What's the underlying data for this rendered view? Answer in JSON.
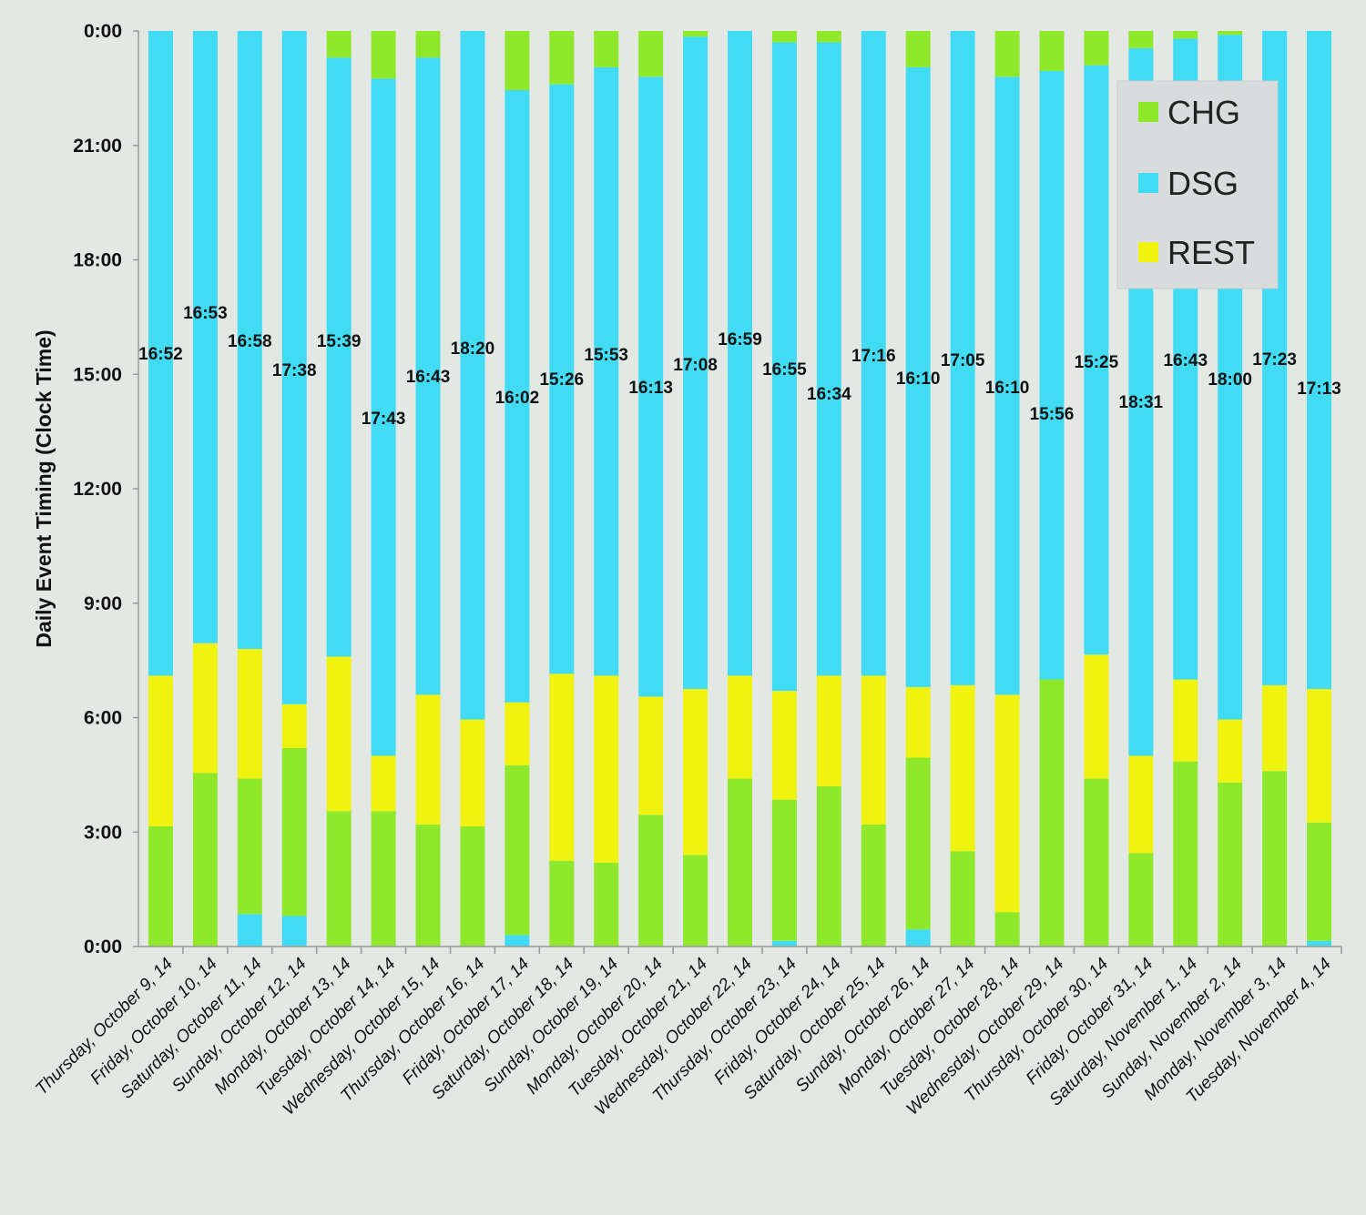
{
  "chart_data": {
    "type": "bar",
    "stacked": true,
    "title": "",
    "ylabel": "Daily Event Timing (Clock Time)",
    "xlabel": "",
    "ylim_hours": [
      0,
      24
    ],
    "y_axis_inverted": true,
    "y_ticks_hours": [
      0,
      3,
      6,
      9,
      12,
      15,
      18,
      21,
      24
    ],
    "y_tick_labels": [
      "0:00",
      "3:00",
      "6:00",
      "9:00",
      "12:00",
      "15:00",
      "18:00",
      "21:00",
      "0:00"
    ],
    "legend_position": "top-right",
    "legend": [
      {
        "name": "CHG",
        "color": "#8fe82a"
      },
      {
        "name": "DSG",
        "color": "#41dcf3"
      },
      {
        "name": "REST",
        "color": "#f0f20f"
      }
    ],
    "categories": [
      "Thursday, October 9, 14",
      "Friday, October 10, 14",
      "Saturday, October 11, 14",
      "Sunday, October 12, 14",
      "Monday, October 13, 14",
      "Tuesday, October 14, 14",
      "Wednesday, October 15, 14",
      "Thursday, October 16, 14",
      "Friday, October 17, 14",
      "Saturday, October 18, 14",
      "Sunday, October 19, 14",
      "Monday, October 20, 14",
      "Tuesday, October 21, 14",
      "Wednesday, October 22, 14",
      "Thursday, October 23, 14",
      "Friday, October 24, 14",
      "Saturday, October 25, 14",
      "Sunday, October 26, 14",
      "Monday, October 27, 14",
      "Tuesday, October 28, 14",
      "Wednesday, October 29, 14",
      "Thursday, October 30, 14",
      "Friday, October 31, 14",
      "Saturday, November 1, 14",
      "Sunday, November 2, 14",
      "Monday, November 3, 14",
      "Tuesday, November 4, 14"
    ],
    "segments_note": "Each bar lists stacked segments as [start_hour, end_hour, series] measured from 0:00 (bottom) to 24:00 (top).",
    "bars": [
      {
        "label": "16:52",
        "segments": [
          [
            0,
            3.15,
            "CHG"
          ],
          [
            3.15,
            7.1,
            "REST"
          ],
          [
            7.1,
            24,
            "DSG"
          ]
        ]
      },
      {
        "label": "16:53",
        "segments": [
          [
            0,
            4.55,
            "CHG"
          ],
          [
            4.55,
            7.95,
            "REST"
          ],
          [
            7.95,
            24,
            "DSG"
          ]
        ]
      },
      {
        "label": "16:58",
        "segments": [
          [
            0,
            0.85,
            "DSG"
          ],
          [
            0.85,
            4.4,
            "CHG"
          ],
          [
            4.4,
            7.8,
            "REST"
          ],
          [
            7.8,
            24,
            "DSG"
          ]
        ]
      },
      {
        "label": "17:38",
        "segments": [
          [
            0,
            0.8,
            "DSG"
          ],
          [
            0.8,
            5.2,
            "CHG"
          ],
          [
            5.2,
            6.35,
            "REST"
          ],
          [
            6.35,
            24,
            "DSG"
          ]
        ]
      },
      {
        "label": "15:39",
        "segments": [
          [
            0,
            3.55,
            "CHG"
          ],
          [
            3.55,
            7.6,
            "REST"
          ],
          [
            7.6,
            23.3,
            "DSG"
          ],
          [
            23.3,
            24,
            "CHG"
          ]
        ]
      },
      {
        "label": "17:43",
        "segments": [
          [
            0,
            3.55,
            "CHG"
          ],
          [
            3.55,
            5.0,
            "REST"
          ],
          [
            5.0,
            22.75,
            "DSG"
          ],
          [
            22.75,
            24,
            "CHG"
          ]
        ]
      },
      {
        "label": "16:43",
        "segments": [
          [
            0,
            3.2,
            "CHG"
          ],
          [
            3.2,
            6.6,
            "REST"
          ],
          [
            6.6,
            23.3,
            "DSG"
          ],
          [
            23.3,
            24,
            "CHG"
          ]
        ]
      },
      {
        "label": "18:20",
        "segments": [
          [
            0,
            3.15,
            "CHG"
          ],
          [
            3.15,
            5.95,
            "REST"
          ],
          [
            5.95,
            24,
            "DSG"
          ]
        ]
      },
      {
        "label": "16:02",
        "segments": [
          [
            0,
            0.3,
            "DSG"
          ],
          [
            0.3,
            4.75,
            "CHG"
          ],
          [
            4.75,
            6.4,
            "REST"
          ],
          [
            6.4,
            22.45,
            "DSG"
          ],
          [
            22.45,
            24,
            "CHG"
          ]
        ]
      },
      {
        "label": "15:26",
        "segments": [
          [
            0,
            2.25,
            "CHG"
          ],
          [
            2.25,
            7.15,
            "REST"
          ],
          [
            7.15,
            22.6,
            "DSG"
          ],
          [
            22.6,
            24,
            "CHG"
          ]
        ]
      },
      {
        "label": "15:53",
        "segments": [
          [
            0,
            2.2,
            "CHG"
          ],
          [
            2.2,
            7.1,
            "REST"
          ],
          [
            7.1,
            23.05,
            "DSG"
          ],
          [
            23.05,
            24,
            "CHG"
          ]
        ]
      },
      {
        "label": "16:13",
        "segments": [
          [
            0,
            3.45,
            "CHG"
          ],
          [
            3.45,
            6.55,
            "REST"
          ],
          [
            6.55,
            22.8,
            "DSG"
          ],
          [
            22.8,
            24,
            "CHG"
          ]
        ]
      },
      {
        "label": "17:08",
        "segments": [
          [
            0,
            2.4,
            "CHG"
          ],
          [
            2.4,
            6.75,
            "REST"
          ],
          [
            6.75,
            23.85,
            "DSG"
          ],
          [
            23.85,
            24,
            "CHG"
          ]
        ]
      },
      {
        "label": "16:59",
        "segments": [
          [
            0,
            4.4,
            "CHG"
          ],
          [
            4.4,
            7.1,
            "REST"
          ],
          [
            7.1,
            24,
            "DSG"
          ]
        ]
      },
      {
        "label": "16:55",
        "segments": [
          [
            0,
            0.15,
            "DSG"
          ],
          [
            0.15,
            3.85,
            "CHG"
          ],
          [
            3.85,
            6.7,
            "REST"
          ],
          [
            6.7,
            23.7,
            "DSG"
          ],
          [
            23.7,
            24,
            "CHG"
          ]
        ]
      },
      {
        "label": "16:34",
        "segments": [
          [
            0,
            4.2,
            "CHG"
          ],
          [
            4.2,
            7.1,
            "REST"
          ],
          [
            7.1,
            23.7,
            "DSG"
          ],
          [
            23.7,
            24,
            "CHG"
          ]
        ]
      },
      {
        "label": "17:16",
        "segments": [
          [
            0,
            3.2,
            "CHG"
          ],
          [
            3.2,
            7.1,
            "REST"
          ],
          [
            7.1,
            24,
            "DSG"
          ]
        ]
      },
      {
        "label": "16:10",
        "segments": [
          [
            0,
            0.45,
            "DSG"
          ],
          [
            0.45,
            4.95,
            "CHG"
          ],
          [
            4.95,
            6.8,
            "REST"
          ],
          [
            6.8,
            23.05,
            "DSG"
          ],
          [
            23.05,
            24,
            "CHG"
          ]
        ]
      },
      {
        "label": "17:05",
        "segments": [
          [
            0,
            2.5,
            "CHG"
          ],
          [
            2.5,
            6.85,
            "REST"
          ],
          [
            6.85,
            24,
            "DSG"
          ]
        ]
      },
      {
        "label": "16:10",
        "segments": [
          [
            0,
            0.9,
            "CHG"
          ],
          [
            0.9,
            6.6,
            "REST"
          ],
          [
            6.6,
            22.8,
            "DSG"
          ],
          [
            22.8,
            24,
            "CHG"
          ]
        ]
      },
      {
        "label": "15:56",
        "segments": [
          [
            0,
            7.0,
            "CHG"
          ],
          [
            7.0,
            22.95,
            "DSG"
          ],
          [
            22.95,
            24,
            "CHG"
          ]
        ]
      },
      {
        "label": "15:25",
        "segments": [
          [
            0,
            4.4,
            "CHG"
          ],
          [
            4.4,
            7.65,
            "REST"
          ],
          [
            7.65,
            23.1,
            "DSG"
          ],
          [
            23.1,
            24,
            "CHG"
          ]
        ]
      },
      {
        "label": "18:31",
        "segments": [
          [
            0,
            2.45,
            "CHG"
          ],
          [
            2.45,
            5.0,
            "REST"
          ],
          [
            5.0,
            23.55,
            "DSG"
          ],
          [
            23.55,
            24,
            "CHG"
          ]
        ]
      },
      {
        "label": "16:43",
        "segments": [
          [
            0,
            4.85,
            "CHG"
          ],
          [
            4.85,
            7.0,
            "REST"
          ],
          [
            7.0,
            23.8,
            "DSG"
          ],
          [
            23.8,
            24,
            "CHG"
          ]
        ]
      },
      {
        "label": "18:00",
        "segments": [
          [
            0,
            4.3,
            "CHG"
          ],
          [
            4.3,
            5.95,
            "REST"
          ],
          [
            5.95,
            23.9,
            "DSG"
          ],
          [
            23.9,
            24,
            "CHG"
          ]
        ]
      },
      {
        "label": "17:23",
        "segments": [
          [
            0,
            4.6,
            "CHG"
          ],
          [
            4.6,
            6.85,
            "REST"
          ],
          [
            6.85,
            24,
            "DSG"
          ]
        ]
      },
      {
        "label": "17:13",
        "segments": [
          [
            0,
            0.15,
            "DSG"
          ],
          [
            0.15,
            3.25,
            "CHG"
          ],
          [
            3.25,
            6.75,
            "REST"
          ],
          [
            6.75,
            24,
            "DSG"
          ]
        ]
      }
    ]
  }
}
